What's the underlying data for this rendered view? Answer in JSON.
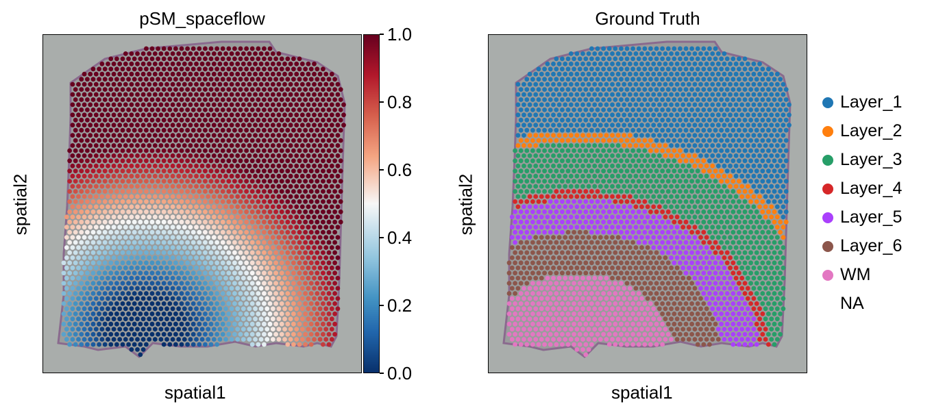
{
  "chart_data": [
    {
      "type": "scatter",
      "title": "pSM_spaceflow",
      "xlabel": "spatial1",
      "ylabel": "spatial2",
      "colorbar": {
        "cmap": "RdBu_r",
        "range": [
          0.0,
          1.0
        ],
        "ticks": [
          "0.0",
          "0.2",
          "0.4",
          "0.6",
          "0.8",
          "1.0"
        ]
      },
      "colors": {
        "low": "#08306b",
        "mid": "#f7f7f7",
        "high": "#67001f"
      },
      "description_of_values": "pseudo-spatiotemporal value per spot; low values concentrated in lower-left (white-matter region), rising toward upper-right"
    },
    {
      "type": "scatter",
      "title": "Ground Truth",
      "xlabel": "spatial1",
      "ylabel": "spatial2",
      "legend_position": "right",
      "legend": [
        {
          "label": "Layer_1",
          "color": "#1f77b4"
        },
        {
          "label": "Layer_2",
          "color": "#ff7f0e"
        },
        {
          "label": "Layer_3",
          "color": "#279e68"
        },
        {
          "label": "Layer_4",
          "color": "#d62728"
        },
        {
          "label": "Layer_5",
          "color": "#aa40fc"
        },
        {
          "label": "Layer_6",
          "color": "#8c564b"
        },
        {
          "label": "WM",
          "color": "#e377c2"
        },
        {
          "label": "NA",
          "color": ""
        }
      ]
    }
  ],
  "background_color": "#a9adab"
}
